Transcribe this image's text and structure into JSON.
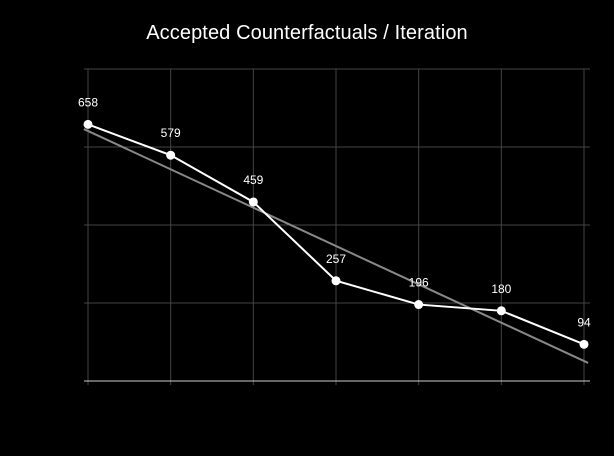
{
  "chart_data": {
    "type": "line",
    "title": "Accepted Counterfactuals / Iteration",
    "xlabel": "",
    "ylabel": "",
    "x": [
      1,
      2,
      3,
      4,
      5,
      6,
      7
    ],
    "series": [
      {
        "values": [
          658,
          579,
          459,
          257,
          196,
          180,
          94
        ],
        "color": "#ffffff",
        "markers": true,
        "data_labels": true
      }
    ],
    "trendline": {
      "kind": "linear",
      "color": "#888888"
    },
    "ylim": [
      0,
      800
    ],
    "grid": true,
    "axis_tick_labels_visible": false,
    "background": "#000000",
    "grid_color": "#444444"
  }
}
